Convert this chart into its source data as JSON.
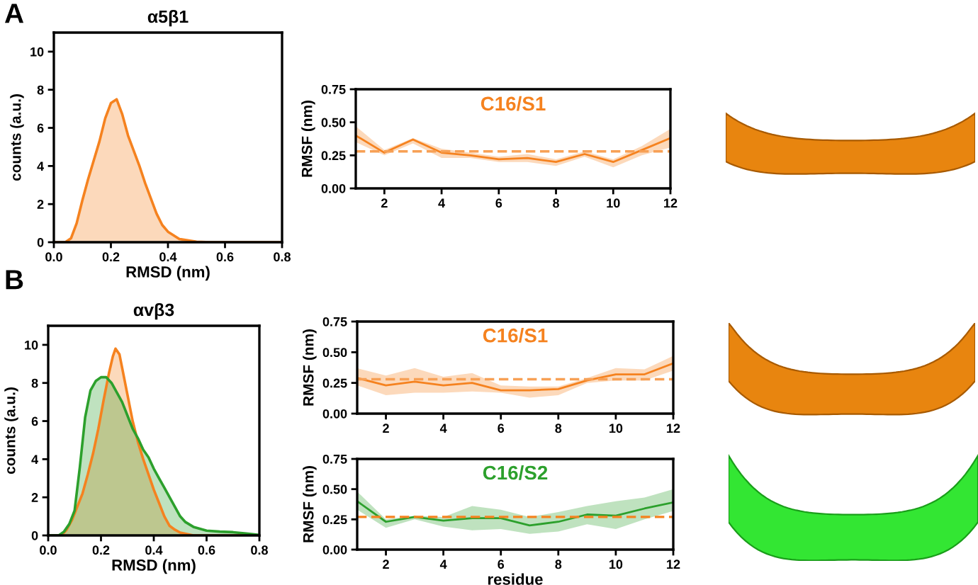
{
  "chart_data": [
    {
      "type": "area",
      "title": "α5β1",
      "xlabel": "RMSD (nm)",
      "ylabel": "counts (a.u.)",
      "annotations": [
        "A"
      ],
      "x": [
        0.0,
        0.04,
        0.06,
        0.08,
        0.1,
        0.12,
        0.14,
        0.16,
        0.18,
        0.2,
        0.22,
        0.24,
        0.26,
        0.28,
        0.3,
        0.32,
        0.34,
        0.36,
        0.38,
        0.4,
        0.44,
        0.5,
        0.55,
        0.8
      ],
      "series": [
        {
          "color": "#f5821f",
          "values": [
            0,
            0,
            0.2,
            1.0,
            2.2,
            3.3,
            4.3,
            5.3,
            6.5,
            7.3,
            7.5,
            6.7,
            5.6,
            4.8,
            4.0,
            3.1,
            2.3,
            1.5,
            0.9,
            0.55,
            0.17,
            0.03,
            0,
            0
          ]
        }
      ],
      "xlim": [
        0,
        0.8
      ],
      "xticks": [
        {
          "value": 0,
          "label": "0.0"
        },
        {
          "value": 0.2,
          "label": "0.2"
        },
        {
          "value": 0.4,
          "label": "0.4"
        },
        {
          "value": 0.6,
          "label": "0.6"
        },
        {
          "value": 0.8,
          "label": "0.8"
        }
      ],
      "ylim": [
        0,
        11
      ],
      "yticks": [
        0,
        2,
        4,
        6,
        8,
        10
      ]
    },
    {
      "type": "line",
      "ylabel": "RMSF (nm)",
      "x": [
        1,
        2,
        3,
        4,
        5,
        6,
        7,
        8,
        9,
        10,
        11,
        12
      ],
      "series": [
        {
          "name": "C16/S1",
          "color": "#f5821f",
          "values": [
            0.4,
            0.27,
            0.37,
            0.27,
            0.25,
            0.22,
            0.23,
            0.2,
            0.26,
            0.2,
            0.29,
            0.38
          ],
          "lower": [
            0.35,
            0.25,
            0.34,
            0.23,
            0.23,
            0.2,
            0.2,
            0.17,
            0.24,
            0.16,
            0.25,
            0.31
          ],
          "upper": [
            0.47,
            0.29,
            0.38,
            0.3,
            0.27,
            0.24,
            0.26,
            0.22,
            0.28,
            0.22,
            0.32,
            0.45
          ]
        }
      ],
      "ref_lines": [
        {
          "axis": "y",
          "value": 0.28,
          "color": "#f7a055",
          "line_style": "dashed"
        }
      ],
      "xlim": [
        1,
        12
      ],
      "xticks": [
        2,
        4,
        6,
        8,
        10,
        12
      ],
      "ylim": [
        0,
        0.75
      ],
      "yticks": [
        {
          "value": 0,
          "label": "0.00"
        },
        {
          "value": 0.25,
          "label": "0.25"
        },
        {
          "value": 0.5,
          "label": "0.50"
        },
        {
          "value": 0.75,
          "label": "0.75"
        }
      ]
    },
    {
      "type": "area",
      "title": "αvβ3",
      "xlabel": "RMSD (nm)",
      "ylabel": "counts (a.u.)",
      "annotations": [
        "B"
      ],
      "series": [
        {
          "color": "#f5821f",
          "x": [
            0.0,
            0.05,
            0.07,
            0.09,
            0.11,
            0.13,
            0.15,
            0.17,
            0.19,
            0.21,
            0.23,
            0.245,
            0.255,
            0.27,
            0.28,
            0.3,
            0.32,
            0.34,
            0.36,
            0.38,
            0.4,
            0.42,
            0.44,
            0.46,
            0.48,
            0.5,
            0.55,
            0.8
          ],
          "values": [
            0,
            0,
            0.3,
            0.8,
            1.5,
            2.2,
            3.2,
            4.3,
            5.6,
            7.1,
            8.5,
            9.4,
            9.8,
            9.5,
            8.8,
            7.4,
            6.0,
            4.9,
            4.0,
            3.2,
            2.4,
            1.7,
            1.0,
            0.5,
            0.3,
            0.15,
            0,
            0
          ]
        },
        {
          "color": "#2ca02c",
          "x": [
            0.0,
            0.04,
            0.06,
            0.08,
            0.1,
            0.12,
            0.14,
            0.16,
            0.18,
            0.2,
            0.22,
            0.24,
            0.26,
            0.28,
            0.3,
            0.32,
            0.34,
            0.36,
            0.38,
            0.4,
            0.42,
            0.44,
            0.46,
            0.48,
            0.5,
            0.52,
            0.55,
            0.6,
            0.65,
            0.7,
            0.75,
            0.8
          ],
          "values": [
            0,
            0,
            0.2,
            0.6,
            1.3,
            3.6,
            6.2,
            7.6,
            8.1,
            8.3,
            8.3,
            8.0,
            7.5,
            7.0,
            6.3,
            5.6,
            5.1,
            4.5,
            4.1,
            3.5,
            3.0,
            2.5,
            2.0,
            1.5,
            1.0,
            0.7,
            0.45,
            0.25,
            0.2,
            0.17,
            0.1,
            0.03
          ]
        }
      ],
      "xlim": [
        0,
        0.8
      ],
      "xticks": [
        {
          "value": 0,
          "label": "0.0"
        },
        {
          "value": 0.2,
          "label": "0.2"
        },
        {
          "value": 0.4,
          "label": "0.4"
        },
        {
          "value": 0.6,
          "label": "0.6"
        },
        {
          "value": 0.8,
          "label": "0.8"
        }
      ],
      "ylim": [
        0,
        11
      ],
      "yticks": [
        0,
        2,
        4,
        6,
        8,
        10
      ]
    },
    {
      "type": "line",
      "ylabel": "RMSF (nm)",
      "x": [
        1,
        2,
        3,
        4,
        5,
        6,
        7,
        8,
        9,
        10,
        11,
        12
      ],
      "series": [
        {
          "name": "C16/S1",
          "color": "#f5821f",
          "values": [
            0.29,
            0.23,
            0.26,
            0.23,
            0.25,
            0.19,
            0.19,
            0.2,
            0.27,
            0.32,
            0.32,
            0.41
          ],
          "lower": [
            0.23,
            0.15,
            0.17,
            0.17,
            0.18,
            0.17,
            0.13,
            0.15,
            0.25,
            0.27,
            0.27,
            0.35
          ],
          "upper": [
            0.37,
            0.31,
            0.37,
            0.3,
            0.33,
            0.23,
            0.22,
            0.22,
            0.29,
            0.37,
            0.36,
            0.47
          ]
        }
      ],
      "ref_lines": [
        {
          "axis": "y",
          "value": 0.28,
          "color": "#f7a055",
          "line_style": "dashed"
        }
      ],
      "xlim": [
        1,
        12
      ],
      "xticks": [
        2,
        4,
        6,
        8,
        10,
        12
      ],
      "ylim": [
        0,
        0.75
      ],
      "yticks": [
        {
          "value": 0,
          "label": "0.00"
        },
        {
          "value": 0.25,
          "label": "0.25"
        },
        {
          "value": 0.5,
          "label": "0.50"
        },
        {
          "value": 0.75,
          "label": "0.75"
        }
      ]
    },
    {
      "type": "line",
      "xlabel": "residue",
      "ylabel": "RMSF (nm)",
      "x": [
        1,
        2,
        3,
        4,
        5,
        6,
        7,
        8,
        9,
        10,
        11,
        12
      ],
      "series": [
        {
          "name": "C16/S2",
          "color": "#2ca02c",
          "values": [
            0.4,
            0.23,
            0.27,
            0.24,
            0.26,
            0.26,
            0.2,
            0.23,
            0.29,
            0.28,
            0.34,
            0.39
          ],
          "lower": [
            0.33,
            0.18,
            0.25,
            0.19,
            0.16,
            0.17,
            0.13,
            0.15,
            0.21,
            0.17,
            0.25,
            0.32
          ],
          "upper": [
            0.48,
            0.25,
            0.28,
            0.27,
            0.36,
            0.33,
            0.27,
            0.31,
            0.36,
            0.4,
            0.43,
            0.5
          ]
        }
      ],
      "ref_lines": [
        {
          "axis": "y",
          "value": 0.27,
          "color": "#f5821f",
          "line_style": "dashed"
        }
      ],
      "xlim": [
        1,
        12
      ],
      "xticks": [
        2,
        4,
        6,
        8,
        10,
        12
      ],
      "ylim": [
        0,
        0.75
      ],
      "yticks": [
        {
          "value": 0,
          "label": "0.00"
        },
        {
          "value": 0.25,
          "label": "0.25"
        },
        {
          "value": 0.5,
          "label": "0.50"
        },
        {
          "value": 0.75,
          "label": "0.75"
        }
      ]
    }
  ]
}
